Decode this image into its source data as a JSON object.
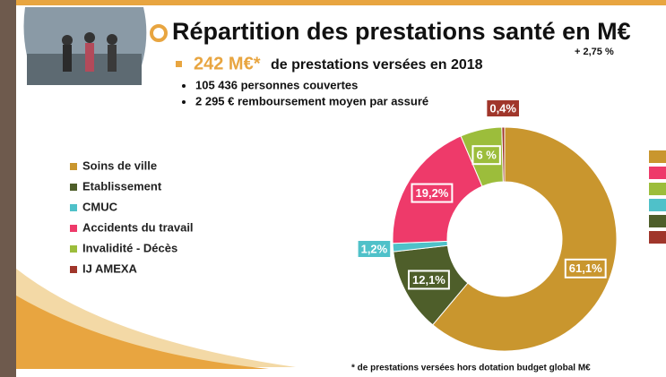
{
  "chart_data": {
    "type": "donut",
    "title": "Répartition des prestations santé en M€",
    "headline": {
      "amount": "242 M€*",
      "text": "de prestations versées en 2018",
      "growth": "+ 2,75 %"
    },
    "bullets": [
      "105 436 personnes couvertes",
      "2 295 € remboursement moyen par assuré"
    ],
    "footnote": "* de prestations versées hors dotation budget global M€",
    "categories": [
      "Soins de ville",
      "Etablissement",
      "CMUC",
      "Accidents du travail",
      "Invalidité - Décès",
      "IJ AMEXA"
    ],
    "values": [
      61.1,
      12.1,
      1.2,
      19.2,
      6,
      0.4
    ],
    "value_labels": [
      "61,1%",
      "12,1%",
      "1,2%",
      "19,2%",
      "6 %",
      "0,4%"
    ],
    "colors": [
      "#c9962e",
      "#4e5e2a",
      "#4fc1c9",
      "#ee3a6a",
      "#9cbd3b",
      "#a0362b"
    ]
  }
}
